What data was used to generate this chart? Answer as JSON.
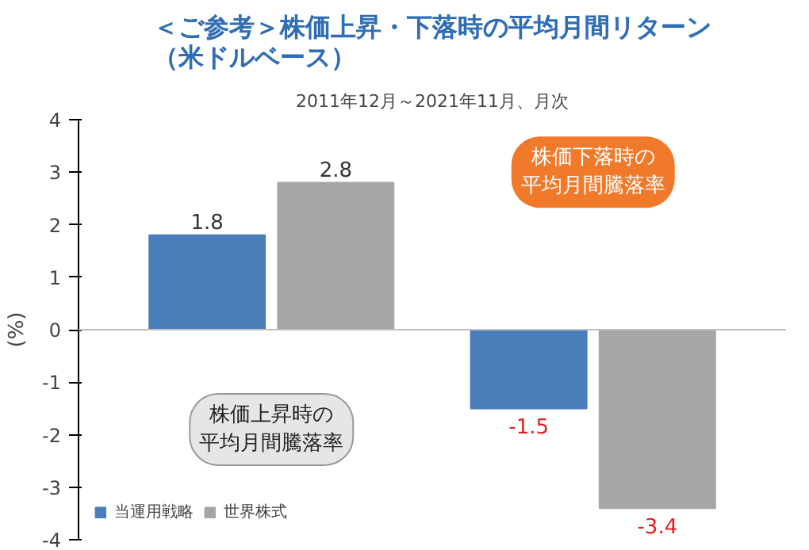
{
  "chart_data": {
    "type": "bar",
    "title": "＜ご参考＞株価上昇・下落時の平均月間リターン（米ドルベース）",
    "subtitle": "2011年12月～2021年11月、月次",
    "ylabel": "(%)",
    "categories": [
      null,
      null
    ],
    "series": [
      {
        "name": "当運用戦略",
        "color": "#4a7ebb",
        "values": [
          1.8,
          -1.5
        ]
      },
      {
        "name": "世界株式",
        "color": "#a6a6a6",
        "values": [
          2.8,
          -3.4
        ]
      }
    ],
    "ylim": [
      -4,
      4
    ],
    "yticks": [
      -4,
      -3,
      -2,
      -1,
      0,
      1,
      2,
      3,
      4
    ],
    "data_labels": true,
    "grid": false,
    "legend": "bottom left",
    "ref_lines": [
      {
        "axis": "y",
        "value": 0,
        "color": "#bfbfbf"
      }
    ],
    "annotations": [
      "株価上昇時の平均月間騰落率",
      "株価下落時の平均月間騰落率"
    ]
  }
}
